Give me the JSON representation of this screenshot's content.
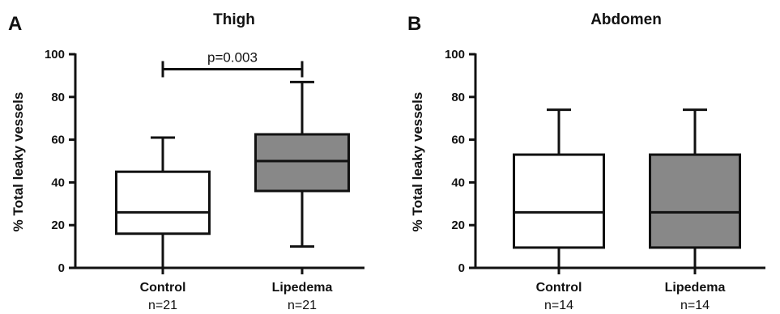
{
  "chart_data": [
    {
      "type": "box",
      "panel": "A",
      "title": "Thigh",
      "ylabel": "% Total leaky vessels",
      "xlabel": "",
      "ylim": [
        0,
        100
      ],
      "yticks": [
        0,
        20,
        40,
        60,
        80,
        100
      ],
      "grid": false,
      "categories": [
        "Control",
        "Lipedema"
      ],
      "n_labels": [
        "n=21",
        "n=21"
      ],
      "boxes": [
        {
          "category": "Control",
          "min": 0,
          "q1": 16,
          "median": 26,
          "q3": 45,
          "max": 61,
          "fill": "#ffffff"
        },
        {
          "category": "Lipedema",
          "min": 10,
          "q1": 36,
          "median": 50,
          "q3": 62.5,
          "max": 87,
          "fill": "#888888"
        }
      ],
      "annotation": {
        "text": "p=0.003",
        "between": [
          0,
          1
        ],
        "y": 93
      }
    },
    {
      "type": "box",
      "panel": "B",
      "title": "Abdomen",
      "ylabel": "% Total leaky vessels",
      "xlabel": "",
      "ylim": [
        0,
        100
      ],
      "yticks": [
        0,
        20,
        40,
        60,
        80,
        100
      ],
      "grid": false,
      "categories": [
        "Control",
        "Lipedema"
      ],
      "n_labels": [
        "n=14",
        "n=14"
      ],
      "boxes": [
        {
          "category": "Control",
          "min": 0,
          "q1": 9.5,
          "median": 26,
          "q3": 53,
          "max": 74,
          "fill": "#ffffff"
        },
        {
          "category": "Lipedema",
          "min": 0,
          "q1": 9.5,
          "median": 26,
          "q3": 53,
          "max": 74,
          "fill": "#888888"
        }
      ]
    }
  ]
}
